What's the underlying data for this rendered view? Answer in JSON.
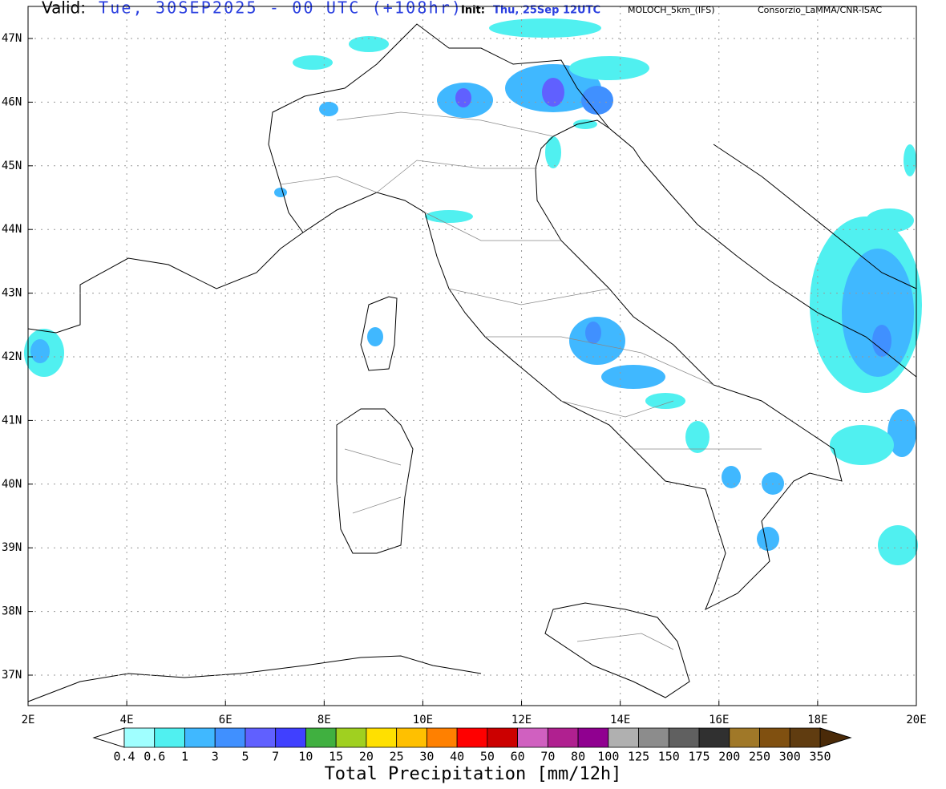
{
  "header": {
    "valid_label": "Valid:",
    "valid": "Tue, 30SEP2025 - 00 UTC (+108hr)",
    "init_label": "Init:",
    "init": "Thu, 25Sep 12UTC",
    "model": "MOLOCH_5km_(IFS)",
    "credit": "Consorzio_LaMMA/CNR-ISAC"
  },
  "map": {
    "lon_labels": [
      "2E",
      "4E",
      "6E",
      "8E",
      "10E",
      "12E",
      "14E",
      "16E",
      "18E",
      "20E"
    ],
    "lat_labels": [
      "47N",
      "46N",
      "45N",
      "44N",
      "43N",
      "42N",
      "41N",
      "40N",
      "39N",
      "38N",
      "37N"
    ]
  },
  "colorbar": {
    "title": "Total Precipitation [mm/12h]",
    "levels": [
      "0.4",
      "0.6",
      "1",
      "3",
      "5",
      "7",
      "10",
      "15",
      "20",
      "25",
      "30",
      "40",
      "50",
      "60",
      "70",
      "80",
      "100",
      "125",
      "150",
      "175",
      "200",
      "250",
      "300",
      "350"
    ],
    "colors": [
      "#a0ffff",
      "#50f0f0",
      "#40b8ff",
      "#4090ff",
      "#6060ff",
      "#4040ff",
      "#40b040",
      "#a0d020",
      "#ffe000",
      "#ffc000",
      "#ff8000",
      "#ff0000",
      "#cc0000",
      "#d060c0",
      "#b02090",
      "#900090",
      "#b0b0b0",
      "#8c8c8c",
      "#606060",
      "#303030",
      "#a07828",
      "#805010",
      "#603c10"
    ],
    "under_color": "#ffffff",
    "over_color": "#4a2a08"
  }
}
